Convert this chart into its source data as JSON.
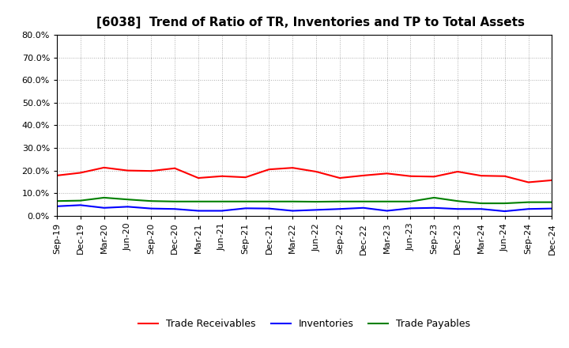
{
  "title": "[6038]  Trend of Ratio of TR, Inventories and TP to Total Assets",
  "x_labels": [
    "Sep-19",
    "Dec-19",
    "Mar-20",
    "Jun-20",
    "Sep-20",
    "Dec-20",
    "Mar-21",
    "Jun-21",
    "Sep-21",
    "Dec-21",
    "Mar-22",
    "Jun-22",
    "Sep-22",
    "Dec-22",
    "Mar-23",
    "Jun-23",
    "Sep-23",
    "Dec-23",
    "Mar-24",
    "Jun-24",
    "Sep-24",
    "Dec-24"
  ],
  "trade_receivables": [
    0.178,
    0.19,
    0.213,
    0.2,
    0.198,
    0.21,
    0.167,
    0.175,
    0.17,
    0.205,
    0.212,
    0.195,
    0.167,
    0.178,
    0.187,
    0.175,
    0.173,
    0.195,
    0.177,
    0.175,
    0.148,
    0.157
  ],
  "inventories": [
    0.042,
    0.047,
    0.035,
    0.04,
    0.032,
    0.03,
    0.022,
    0.022,
    0.033,
    0.032,
    0.022,
    0.026,
    0.03,
    0.035,
    0.022,
    0.033,
    0.035,
    0.03,
    0.03,
    0.02,
    0.03,
    0.032
  ],
  "trade_payables": [
    0.065,
    0.067,
    0.08,
    0.072,
    0.065,
    0.063,
    0.063,
    0.063,
    0.063,
    0.063,
    0.063,
    0.062,
    0.063,
    0.063,
    0.063,
    0.063,
    0.08,
    0.065,
    0.055,
    0.055,
    0.06,
    0.06
  ],
  "ylim": [
    0.0,
    0.8
  ],
  "yticks": [
    0.0,
    0.1,
    0.2,
    0.3,
    0.4,
    0.5,
    0.6,
    0.7,
    0.8
  ],
  "tr_color": "#FF0000",
  "inv_color": "#0000FF",
  "tp_color": "#008000",
  "bg_color": "#FFFFFF",
  "plot_bg_color": "#FFFFFF",
  "grid_color": "#888888",
  "legend_labels": [
    "Trade Receivables",
    "Inventories",
    "Trade Payables"
  ]
}
